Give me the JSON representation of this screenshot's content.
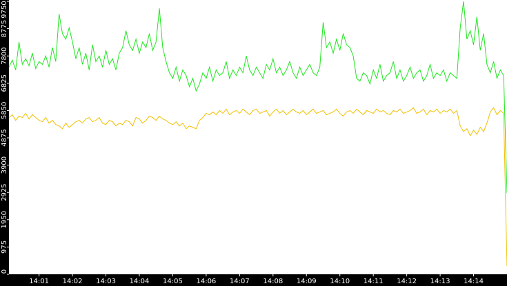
{
  "chart_data": {
    "type": "line",
    "x": [
      840.1,
      840.2,
      840.3,
      840.4,
      840.5,
      840.6,
      840.7,
      840.8,
      840.9,
      841.0,
      841.1,
      841.2,
      841.3,
      841.4,
      841.5,
      841.6,
      841.7,
      841.8,
      841.9,
      842.0,
      842.1,
      842.2,
      842.3,
      842.4,
      842.5,
      842.6,
      842.7,
      842.8,
      842.9,
      843.0,
      843.1,
      843.2,
      843.3,
      843.4,
      843.5,
      843.6,
      843.7,
      843.8,
      843.9,
      844.0,
      844.1,
      844.2,
      844.3,
      844.4,
      844.5,
      844.6,
      844.7,
      844.8,
      844.9,
      845.0,
      845.1,
      845.2,
      845.3,
      845.4,
      845.5,
      845.6,
      845.7,
      845.8,
      845.9,
      846.0,
      846.1,
      846.2,
      846.3,
      846.4,
      846.5,
      846.6,
      846.7,
      846.8,
      846.9,
      847.0,
      847.1,
      847.2,
      847.3,
      847.4,
      847.5,
      847.6,
      847.7,
      847.8,
      847.9,
      848.0,
      848.1,
      848.2,
      848.3,
      848.4,
      848.5,
      848.6,
      848.7,
      848.8,
      848.9,
      849.0,
      849.1,
      849.2,
      849.3,
      849.4,
      849.5,
      849.6,
      849.7,
      849.8,
      849.9,
      850.0,
      850.1,
      850.2,
      850.3,
      850.4,
      850.5,
      850.6,
      850.7,
      850.8,
      850.9,
      851.0,
      851.1,
      851.2,
      851.3,
      851.4,
      851.5,
      851.6,
      851.7,
      851.8,
      851.9,
      852.0,
      852.1,
      852.2,
      852.3,
      852.4,
      852.5,
      852.6,
      852.7,
      852.8,
      852.9,
      853.0,
      853.1,
      853.2,
      853.3,
      853.4,
      853.5,
      853.6,
      853.7,
      853.8,
      853.9,
      854.0,
      854.1,
      854.2,
      854.3,
      854.4,
      854.5,
      854.6,
      854.7,
      854.8,
      854.9,
      855.0
    ],
    "series": [
      {
        "color": "#1ee61e",
        "values": [
          7400,
          7650,
          7300,
          8300,
          7500,
          7700,
          7450,
          7900,
          7350,
          7600,
          7500,
          7800,
          7400,
          8100,
          7600,
          9300,
          8600,
          8400,
          8800,
          8300,
          7700,
          8100,
          7500,
          7900,
          7300,
          8200,
          7600,
          7800,
          7400,
          8000,
          7500,
          7700,
          7300,
          7900,
          8100,
          8700,
          8200,
          8000,
          8400,
          7900,
          8300,
          8100,
          8600,
          8000,
          8300,
          9500,
          8100,
          7600,
          7200,
          7000,
          7400,
          6900,
          7300,
          7100,
          6700,
          7000,
          6550,
          6800,
          7200,
          7000,
          7400,
          6900,
          7300,
          7100,
          7200,
          7600,
          7000,
          7300,
          7100,
          7400,
          7200,
          7800,
          7300,
          7100,
          7400,
          7200,
          7000,
          7500,
          7300,
          7700,
          7200,
          7400,
          7100,
          7300,
          7600,
          7200,
          7000,
          7400,
          7100,
          7300,
          7500,
          7200,
          7100,
          7400,
          9000,
          8100,
          8300,
          7900,
          8400,
          8000,
          8600,
          8200,
          8100,
          7800,
          7000,
          6900,
          7200,
          7100,
          6800,
          7300,
          7000,
          7500,
          6900,
          7100,
          7200,
          7600,
          7000,
          7300,
          6900,
          7100,
          7400,
          7000,
          7200,
          7300,
          6900,
          7100,
          7500,
          7000,
          7200,
          7100,
          7300,
          6900,
          7200,
          7100,
          7000,
          8800,
          9750,
          8400,
          8700,
          8200,
          9200,
          8000,
          8600,
          7500,
          7200,
          7600,
          7000,
          7300,
          7100,
          2900
        ]
      },
      {
        "color": "#f0c000",
        "values": [
          5600,
          5700,
          5500,
          5650,
          5600,
          5750,
          5550,
          5700,
          5600,
          5500,
          5450,
          5600,
          5400,
          5500,
          5350,
          5300,
          5200,
          5400,
          5250,
          5350,
          5450,
          5500,
          5400,
          5550,
          5600,
          5450,
          5500,
          5600,
          5400,
          5350,
          5500,
          5450,
          5300,
          5400,
          5350,
          5500,
          5450,
          5300,
          5600,
          5550,
          5400,
          5500,
          5650,
          5600,
          5500,
          5650,
          5550,
          5500,
          5400,
          5350,
          5450,
          5300,
          5400,
          5200,
          5300,
          5250,
          5200,
          5500,
          5600,
          5750,
          5700,
          5800,
          5700,
          5850,
          5750,
          5900,
          5700,
          5800,
          5850,
          5750,
          5900,
          5800,
          5700,
          5850,
          5900,
          5750,
          5800,
          5850,
          5650,
          5800,
          5900,
          5750,
          5850,
          5700,
          5800,
          5900,
          5800,
          5750,
          5850,
          5700,
          5800,
          5900,
          5750,
          5800,
          5850,
          5700,
          5750,
          5800,
          5900,
          5750,
          5650,
          5800,
          5850,
          5750,
          5900,
          5800,
          5700,
          5850,
          5800,
          5750,
          5900,
          5800,
          5850,
          5750,
          5700,
          5850,
          5800,
          5900,
          5750,
          5800,
          5850,
          5950,
          5750,
          5800,
          5900,
          5700,
          5850,
          5800,
          5900,
          5750,
          5850,
          5800,
          5900,
          5750,
          5850,
          5300,
          5100,
          5200,
          4950,
          5150,
          5000,
          5250,
          5100,
          5400,
          5800,
          5950,
          5700,
          5850,
          5750,
          300
        ]
      }
    ],
    "xlim": [
      840.1,
      855.0
    ],
    "xticks": [
      {
        "value": 841,
        "label": "14:01"
      },
      {
        "value": 842,
        "label": "14:02"
      },
      {
        "value": 843,
        "label": "14:03"
      },
      {
        "value": 844,
        "label": "14:04"
      },
      {
        "value": 845,
        "label": "14:05"
      },
      {
        "value": 846,
        "label": "14:06"
      },
      {
        "value": 847,
        "label": "14:07"
      },
      {
        "value": 848,
        "label": "14:08"
      },
      {
        "value": 849,
        "label": "14:09"
      },
      {
        "value": 850,
        "label": "14:10"
      },
      {
        "value": 851,
        "label": "14:11"
      },
      {
        "value": 852,
        "label": "14:12"
      },
      {
        "value": 853,
        "label": "14:13"
      },
      {
        "value": 854,
        "label": "14:14"
      }
    ],
    "ylim": [
      0,
      9750
    ],
    "yticks": [
      0,
      975,
      1950,
      2925,
      3900,
      4875,
      5850,
      6825,
      7800,
      8775,
      9750
    ]
  }
}
